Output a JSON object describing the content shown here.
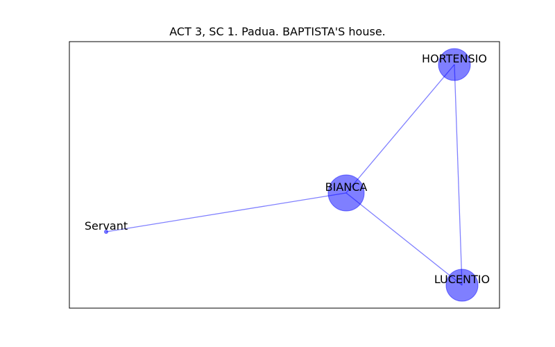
{
  "title": "ACT 3, SC 1. Padua. BAPTISTA'S house.",
  "colors": {
    "node_fill": "#0000ff",
    "edge": "#0000ff",
    "frame": "#000000"
  },
  "graph": {
    "nodes": [
      {
        "id": "HORTENSIO",
        "label": "HORTENSIO",
        "weight": 3
      },
      {
        "id": "BIANCA",
        "label": "BIANCA",
        "weight": 4
      },
      {
        "id": "Servant",
        "label": "Servant",
        "weight": 0
      },
      {
        "id": "LUCENTIO",
        "label": "LUCENTIO",
        "weight": 3
      }
    ],
    "edges": [
      {
        "source": "BIANCA",
        "target": "HORTENSIO"
      },
      {
        "source": "BIANCA",
        "target": "Servant"
      },
      {
        "source": "BIANCA",
        "target": "LUCENTIO"
      },
      {
        "source": "HORTENSIO",
        "target": "LUCENTIO"
      }
    ]
  }
}
